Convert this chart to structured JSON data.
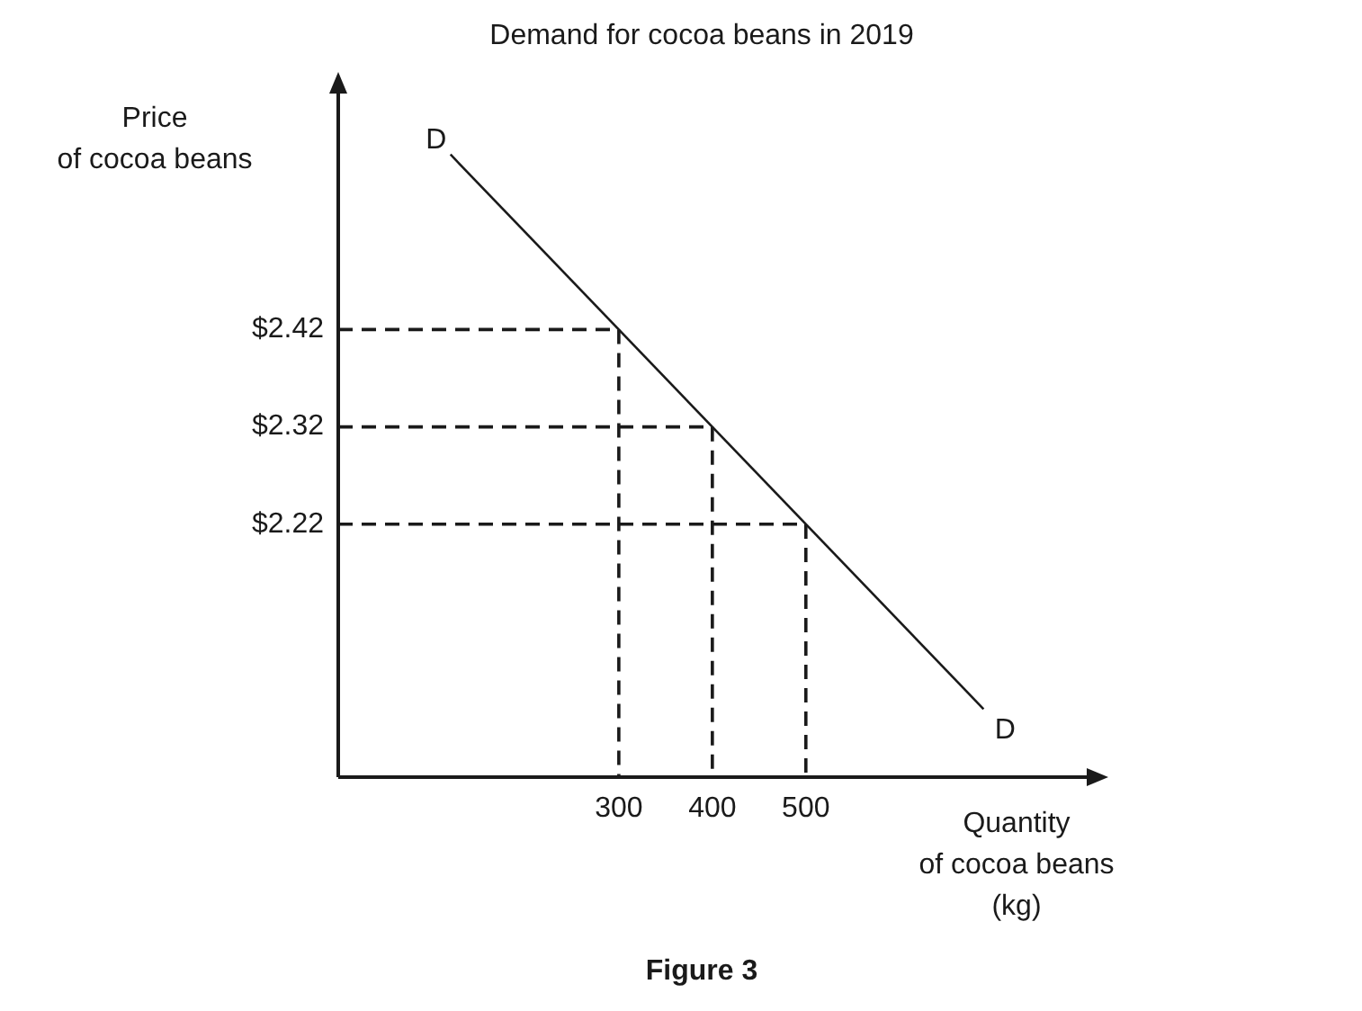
{
  "chart_data": {
    "type": "line",
    "title": "Demand for cocoa beans in 2019",
    "xlabel": "Quantity\nof cocoa beans\n(kg)",
    "ylabel": "Price\nof cocoa beans",
    "xlim": [
      0,
      808
    ],
    "ylim": [
      1.96,
      2.67
    ],
    "xticks": [
      300,
      400,
      500
    ],
    "yticks": [
      {
        "value": 2.42,
        "label": "$2.42"
      },
      {
        "value": 2.32,
        "label": "$2.32"
      },
      {
        "value": 2.22,
        "label": "$2.22"
      }
    ],
    "grid": false,
    "legend": false,
    "marker": "none",
    "series": [
      {
        "color": "#1a1a1a",
        "line_style": "solid",
        "x": [
          120,
          690
        ],
        "values": [
          2.6,
          2.03
        ]
      },
      {
        "color": "#1a1a1a",
        "line_style": "dashed",
        "x": [
          0,
          300,
          300
        ],
        "values": [
          2.42,
          2.42,
          1.96
        ]
      },
      {
        "color": "#1a1a1a",
        "line_style": "dashed",
        "x": [
          0,
          400,
          400
        ],
        "values": [
          2.32,
          2.32,
          1.96
        ]
      },
      {
        "color": "#1a1a1a",
        "line_style": "dashed",
        "x": [
          0,
          500,
          500
        ],
        "values": [
          2.22,
          2.22,
          1.96
        ]
      }
    ],
    "annotations": [
      {
        "text": "D",
        "x": 120,
        "y": 2.6
      },
      {
        "text": "D",
        "x": 690,
        "y": 2.03
      },
      "Figure 3"
    ]
  }
}
